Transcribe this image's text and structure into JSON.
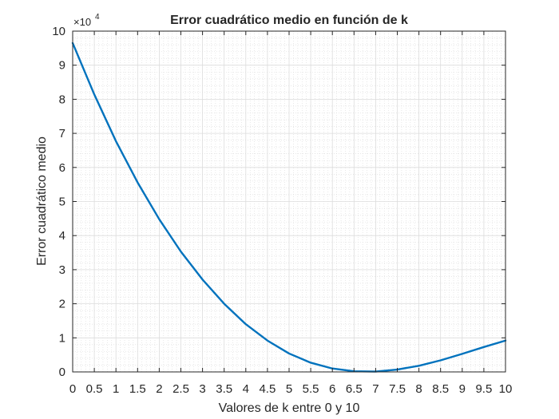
{
  "chart_data": {
    "type": "line",
    "title": "Error cuadrático medio en función de k",
    "xlabel": "Valores de k entre 0 y 10",
    "ylabel": "Error cuadrático medio",
    "exponent_label": "×10",
    "exponent_power": "4",
    "xlim": [
      0,
      10
    ],
    "ylim": [
      0,
      10
    ],
    "xticks": [
      "0",
      "0.5",
      "1",
      "1.5",
      "2",
      "2.5",
      "3",
      "3.5",
      "4",
      "4.5",
      "5",
      "5.5",
      "6",
      "6.5",
      "7",
      "7.5",
      "8",
      "8.5",
      "9",
      "9.5",
      "10"
    ],
    "yticks": [
      "0",
      "1",
      "2",
      "3",
      "4",
      "5",
      "6",
      "7",
      "8",
      "9",
      "10"
    ],
    "grid": true,
    "minor_grid": true,
    "series": [
      {
        "color": "#0072BD",
        "x": [
          0,
          0.5,
          1,
          1.5,
          2,
          2.5,
          3,
          3.5,
          4,
          4.5,
          5,
          5.5,
          6,
          6.5,
          7,
          7.5,
          8,
          8.5,
          9,
          9.5,
          10
        ],
        "y": [
          9.65,
          8.14,
          6.77,
          5.56,
          4.48,
          3.53,
          2.71,
          2.0,
          1.4,
          0.92,
          0.54,
          0.27,
          0.1,
          0.02,
          0.01,
          0.07,
          0.18,
          0.34,
          0.53,
          0.73,
          0.92
        ]
      }
    ]
  }
}
